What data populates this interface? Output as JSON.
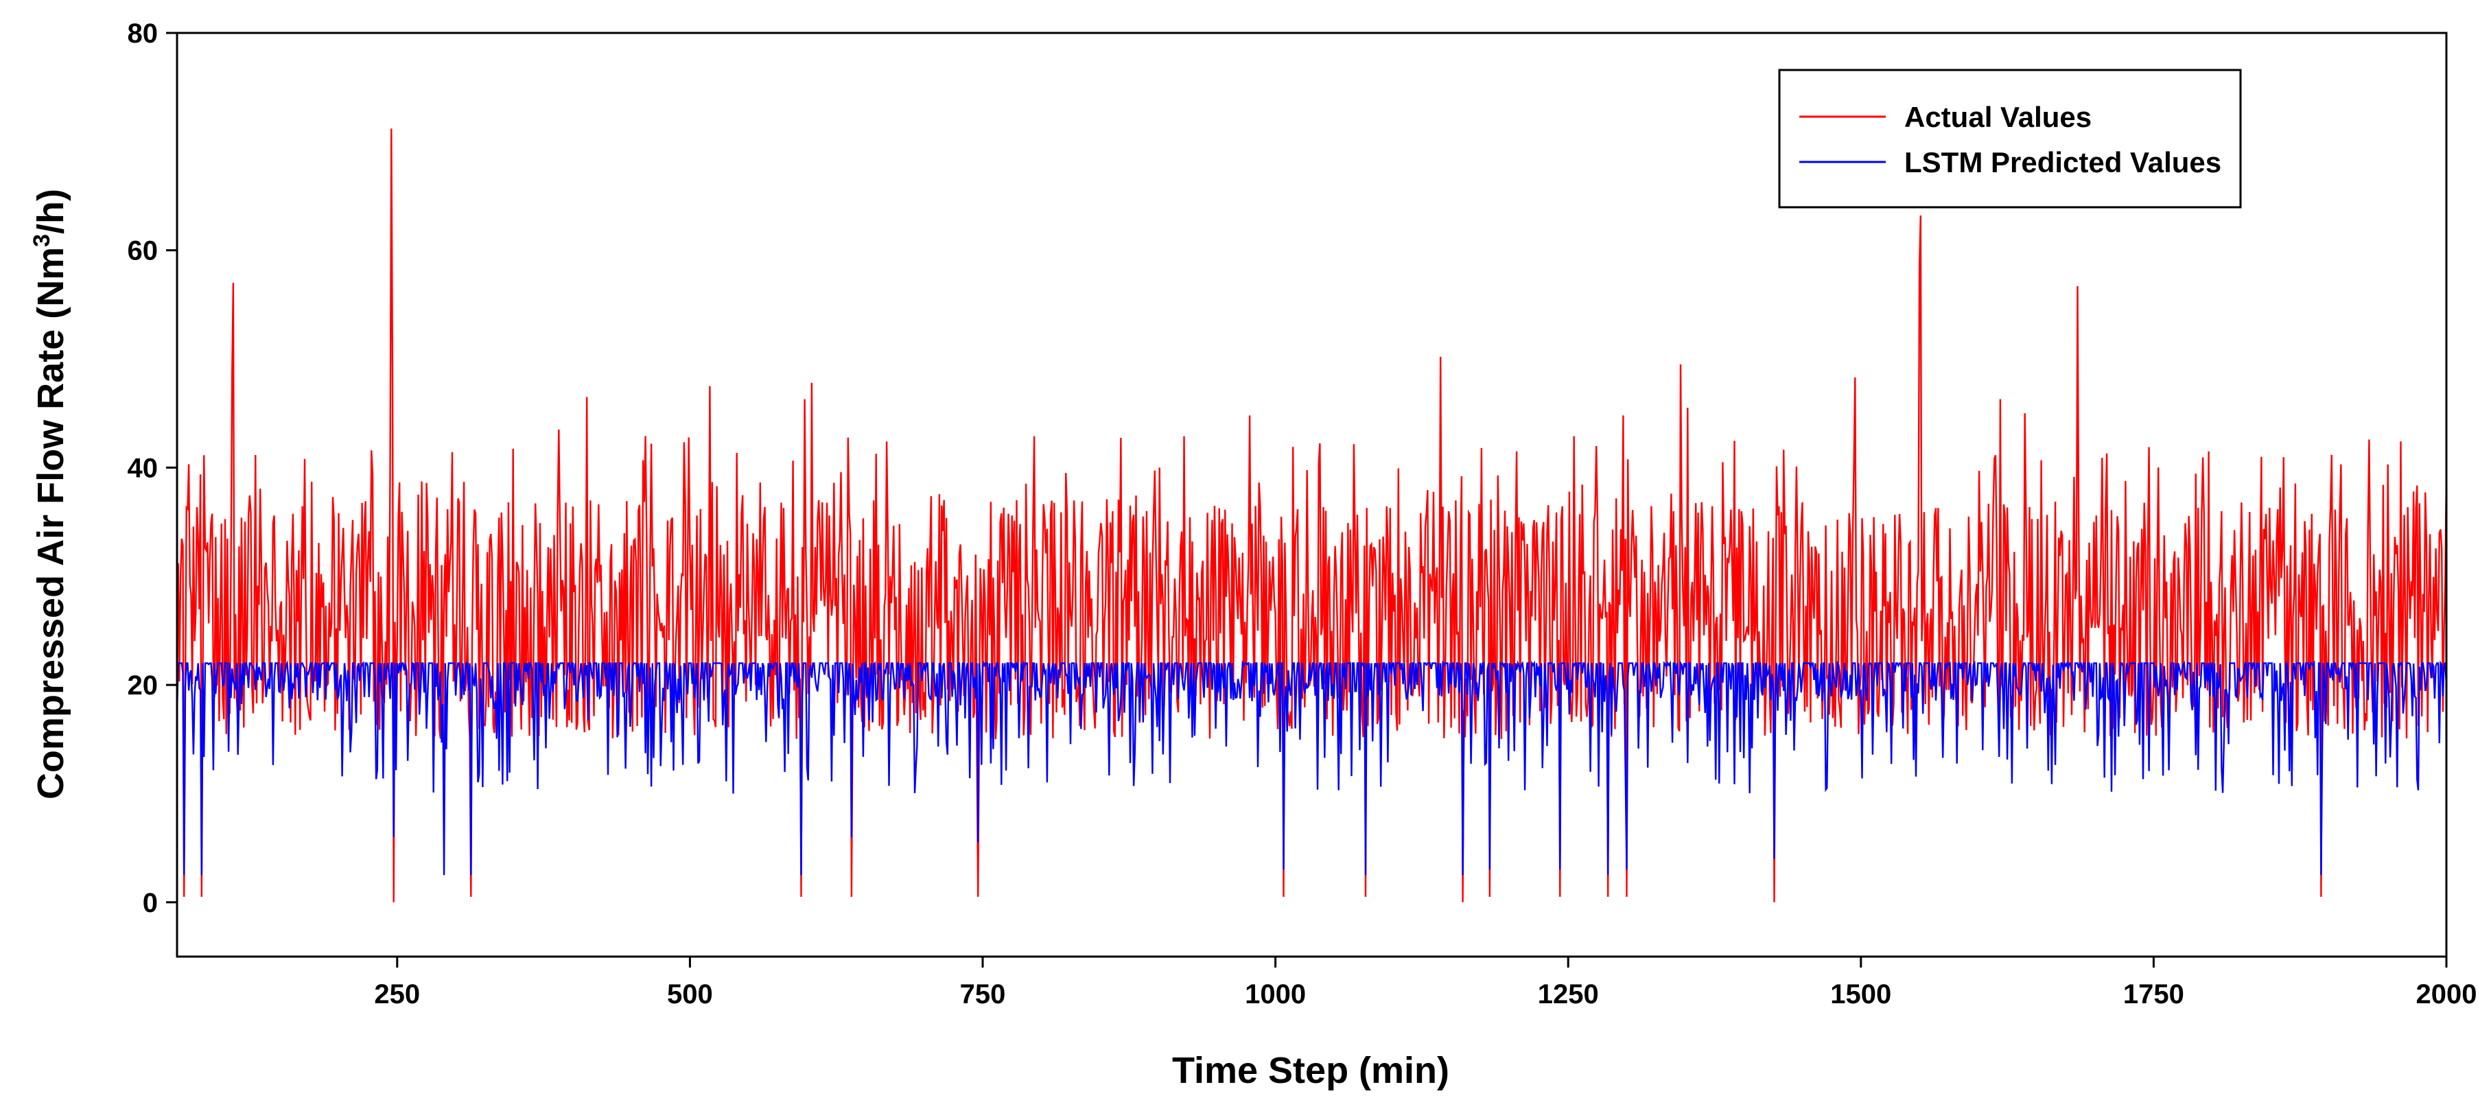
{
  "chart_data": {
    "type": "line",
    "title": "",
    "xlabel": "Time Step (min)",
    "ylabel_main": "Compressed Air Flow Rate (Nm",
    "ylabel_sup": "3",
    "ylabel_tail": "/h)",
    "xlim": [
      62,
      2000
    ],
    "ylim": [
      -5,
      80
    ],
    "xticks": [
      250,
      500,
      750,
      1000,
      1250,
      1500,
      1750,
      2000
    ],
    "xtick_labels": [
      "250",
      "500",
      "750",
      "1000",
      "1250",
      "1500",
      "1750",
      "2000"
    ],
    "yticks": [
      0,
      20,
      40,
      60,
      80
    ],
    "ytick_labels": [
      "0",
      "20",
      "40",
      "60",
      "80"
    ],
    "grid": false,
    "legend_position": "top-right",
    "series": [
      {
        "name": "Actual Values",
        "color": "#ff0000",
        "baseline": 22,
        "noise_seed": 12345,
        "spikes": [
          {
            "x": 110,
            "y": 57
          },
          {
            "x": 109,
            "y": 48.5
          },
          {
            "x": 245,
            "y": 71.2
          },
          {
            "x": 246,
            "y": 48
          },
          {
            "x": 244,
            "y": 41
          },
          {
            "x": 388,
            "y": 43.5
          },
          {
            "x": 412,
            "y": 46.5
          },
          {
            "x": 517,
            "y": 47.5
          },
          {
            "x": 598,
            "y": 46.3
          },
          {
            "x": 604,
            "y": 47.8
          },
          {
            "x": 978,
            "y": 44.8
          },
          {
            "x": 1141,
            "y": 50.2
          },
          {
            "x": 1176,
            "y": 41.8
          },
          {
            "x": 1297,
            "y": 44.8
          },
          {
            "x": 1346,
            "y": 49.5
          },
          {
            "x": 1352,
            "y": 45.5
          },
          {
            "x": 1426,
            "y": 45.5
          },
          {
            "x": 1495,
            "y": 48.3
          },
          {
            "x": 1551,
            "y": 63.2
          },
          {
            "x": 1550,
            "y": 58.5
          },
          {
            "x": 1619,
            "y": 46.3
          },
          {
            "x": 1640,
            "y": 45
          },
          {
            "x": 1685,
            "y": 56.7
          },
          {
            "x": 1710,
            "y": 41.3
          },
          {
            "x": 1842,
            "y": 41
          }
        ],
        "dips": [
          {
            "x": 68,
            "y": 0.5
          },
          {
            "x": 83,
            "y": 0.5
          },
          {
            "x": 247,
            "y": 0
          },
          {
            "x": 313,
            "y": 0.5
          },
          {
            "x": 595,
            "y": 0.5
          },
          {
            "x": 638,
            "y": 0.5
          },
          {
            "x": 746,
            "y": 0.5
          },
          {
            "x": 1007,
            "y": 0.5
          },
          {
            "x": 1077,
            "y": 0.5
          },
          {
            "x": 1160,
            "y": 0
          },
          {
            "x": 1183,
            "y": 0.5
          },
          {
            "x": 1243,
            "y": 0.5
          },
          {
            "x": 1284,
            "y": 0.5
          },
          {
            "x": 1300,
            "y": 0.5
          },
          {
            "x": 1426,
            "y": 0
          },
          {
            "x": 1893,
            "y": 0.5
          }
        ]
      },
      {
        "name": "LSTM Predicted Values",
        "color": "#0000ff",
        "baseline": 22,
        "noise_seed": 67890,
        "dips": [
          {
            "x": 68,
            "y": 2.5
          },
          {
            "x": 83,
            "y": 2.5
          },
          {
            "x": 247,
            "y": 6
          },
          {
            "x": 290,
            "y": 2.5
          },
          {
            "x": 313,
            "y": 2.5
          },
          {
            "x": 595,
            "y": 2.5
          },
          {
            "x": 638,
            "y": 6
          },
          {
            "x": 746,
            "y": 5.5
          },
          {
            "x": 1007,
            "y": 3
          },
          {
            "x": 1077,
            "y": 2.5
          },
          {
            "x": 1160,
            "y": 2.5
          },
          {
            "x": 1183,
            "y": 3
          },
          {
            "x": 1243,
            "y": 3
          },
          {
            "x": 1284,
            "y": 2.5
          },
          {
            "x": 1300,
            "y": 3
          },
          {
            "x": 1426,
            "y": 4
          },
          {
            "x": 1893,
            "y": 2.5
          }
        ]
      }
    ]
  }
}
